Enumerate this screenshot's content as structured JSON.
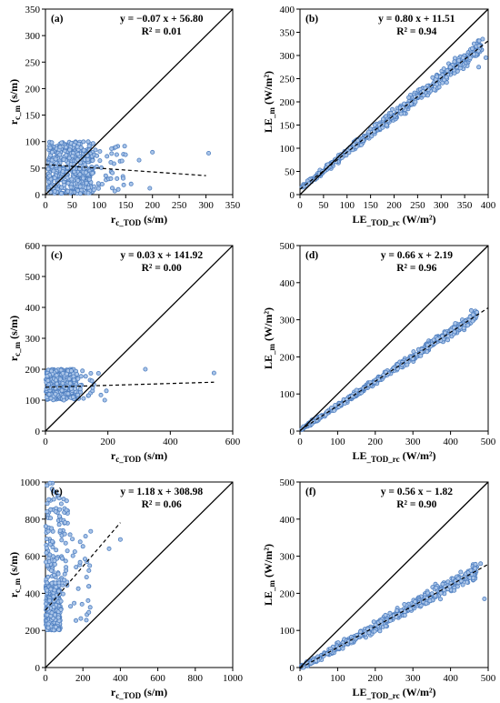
{
  "chart_data": [
    {
      "type": "scatter",
      "panel_label": "(a)",
      "equation": "y = −0.07 x + 56.80",
      "r2": "R² = 0.01",
      "xlabel_main": "r",
      "xlabel_sub": "c_TOD",
      "xlabel_unit": " (s/m)",
      "ylabel_main": "r",
      "ylabel_sub": "c_m",
      "ylabel_unit": " (s/m)",
      "xlim": [
        0,
        350
      ],
      "ylim": [
        0,
        350
      ],
      "xticks": [
        0,
        50,
        100,
        150,
        200,
        250,
        300,
        350
      ],
      "yticks": [
        0,
        50,
        100,
        150,
        200,
        250,
        300,
        350
      ],
      "fit": {
        "slope": -0.07,
        "intercept": 56.8,
        "x_range": [
          0,
          300
        ]
      },
      "one_to_one": true,
      "cloud": [
        {
          "n": 420,
          "x": [
            5,
            90
          ],
          "y": [
            2,
            100
          ]
        },
        {
          "n": 40,
          "x": [
            90,
            150
          ],
          "y": [
            5,
            95
          ]
        }
      ],
      "extra_points": [
        [
          200,
          80
        ],
        [
          305,
          78
        ],
        [
          175,
          65
        ],
        [
          160,
          20
        ],
        [
          195,
          12
        ]
      ]
    },
    {
      "type": "scatter",
      "panel_label": "(b)",
      "equation": "y = 0.80 x + 11.51",
      "r2": "R² = 0.94",
      "xlabel_main": "LE",
      "xlabel_sub": "_TOD_rc",
      "xlabel_unit": " (W/m²)",
      "ylabel_main": "LE",
      "ylabel_sub": "_m",
      "ylabel_unit": " (W/m²)",
      "xlim": [
        0,
        400
      ],
      "ylim": [
        0,
        400
      ],
      "xticks": [
        0,
        50,
        100,
        150,
        200,
        250,
        300,
        350,
        400
      ],
      "yticks": [
        0,
        50,
        100,
        150,
        200,
        250,
        300,
        350,
        400
      ],
      "fit": {
        "slope": 0.8,
        "intercept": 11.51,
        "x_range": [
          0,
          400
        ]
      },
      "one_to_one": true,
      "cloud": [
        {
          "n": 520,
          "x": [
            2,
            390
          ],
          "y_fit": true,
          "spread": 20
        }
      ],
      "extra_points": [
        [
          395,
          295
        ],
        [
          380,
          275
        ]
      ]
    },
    {
      "type": "scatter",
      "panel_label": "(c)",
      "equation": "y = 0.03 x + 141.92",
      "r2": "R² = 0.00",
      "xlabel_main": "r",
      "xlabel_sub": "c_TOD",
      "xlabel_unit": " (s/m)",
      "ylabel_main": "r",
      "ylabel_sub": "c_m",
      "ylabel_unit": " (s/m)",
      "xlim": [
        0,
        600
      ],
      "ylim": [
        0,
        600
      ],
      "xticks": [
        0,
        200,
        400,
        600
      ],
      "yticks": [
        0,
        100,
        200,
        300,
        400,
        500,
        600
      ],
      "fit": {
        "slope": 0.03,
        "intercept": 141.92,
        "x_range": [
          0,
          540
        ]
      },
      "one_to_one": true,
      "cloud": [
        {
          "n": 420,
          "x": [
            2,
            100
          ],
          "y": [
            100,
            200
          ]
        },
        {
          "n": 25,
          "x": [
            100,
            180
          ],
          "y": [
            105,
            195
          ]
        }
      ],
      "extra_points": [
        [
          540,
          188
        ],
        [
          320,
          200
        ],
        [
          195,
          130
        ],
        [
          190,
          100
        ]
      ]
    },
    {
      "type": "scatter",
      "panel_label": "(d)",
      "equation": "y = 0.66 x + 2.19",
      "r2": "R² = 0.96",
      "xlabel_main": "LE",
      "xlabel_sub": "_TOD_rc",
      "xlabel_unit": " (W/m²)",
      "ylabel_main": "LE",
      "ylabel_sub": "_m",
      "ylabel_unit": " (W/m²)",
      "xlim": [
        0,
        500
      ],
      "ylim": [
        0,
        500
      ],
      "xticks": [
        0,
        100,
        200,
        300,
        400,
        500
      ],
      "yticks": [
        0,
        100,
        200,
        300,
        400,
        500
      ],
      "fit": {
        "slope": 0.66,
        "intercept": 2.19,
        "x_range": [
          0,
          500
        ]
      },
      "one_to_one": true,
      "cloud": [
        {
          "n": 480,
          "x": [
            2,
            470
          ],
          "y_fit": true,
          "spread": 16
        }
      ],
      "extra_points": [
        [
          455,
          325
        ],
        [
          470,
          320
        ]
      ]
    },
    {
      "type": "scatter",
      "panel_label": "(e)",
      "equation": "y = 1.18 x + 308.98",
      "r2": "R² = 0.06",
      "xlabel_main": "r",
      "xlabel_sub": "c_TOD",
      "xlabel_unit": " (s/m)",
      "ylabel_main": "r",
      "ylabel_sub": "c_m",
      "ylabel_unit": " (s/m)",
      "xlim": [
        0,
        1000
      ],
      "ylim": [
        0,
        1000
      ],
      "xticks": [
        0,
        200,
        400,
        600,
        800,
        1000
      ],
      "yticks": [
        0,
        200,
        400,
        600,
        800,
        1000
      ],
      "fit": {
        "slope": 1.18,
        "intercept": 308.98,
        "x_range": [
          0,
          400
        ]
      },
      "one_to_one": true,
      "cloud": [
        {
          "n": 300,
          "x": [
            2,
            80
          ],
          "y": [
            200,
            450
          ]
        },
        {
          "n": 120,
          "x": [
            2,
            120
          ],
          "y": [
            400,
            1000
          ]
        },
        {
          "n": 40,
          "x": [
            80,
            250
          ],
          "y": [
            250,
            750
          ]
        }
      ],
      "extra_points": [
        [
          400,
          690
        ],
        [
          340,
          640
        ]
      ]
    },
    {
      "type": "scatter",
      "panel_label": "(f)",
      "equation": "y = 0.56 x − 1.82",
      "r2": "R² = 0.90",
      "xlabel_main": "LE",
      "xlabel_sub": "_TOD_rc",
      "xlabel_unit": " (W/m²)",
      "ylabel_main": "LE",
      "ylabel_sub": "_m",
      "ylabel_unit": " (W/m²)",
      "xlim": [
        0,
        500
      ],
      "ylim": [
        0,
        500
      ],
      "xticks": [
        0,
        100,
        200,
        300,
        400,
        500
      ],
      "yticks": [
        0,
        100,
        200,
        300,
        400,
        500
      ],
      "fit": {
        "slope": 0.56,
        "intercept": -1.82,
        "x_range": [
          0,
          500
        ]
      },
      "one_to_one": true,
      "cloud": [
        {
          "n": 480,
          "x": [
            2,
            470
          ],
          "y_fit": true,
          "spread": 25
        }
      ],
      "extra_points": [
        [
          490,
          185
        ],
        [
          480,
          280
        ]
      ]
    }
  ],
  "colors": {
    "marker_fill": "#a9c4e8",
    "marker_stroke": "#4f7fc0",
    "line": "#000000"
  }
}
